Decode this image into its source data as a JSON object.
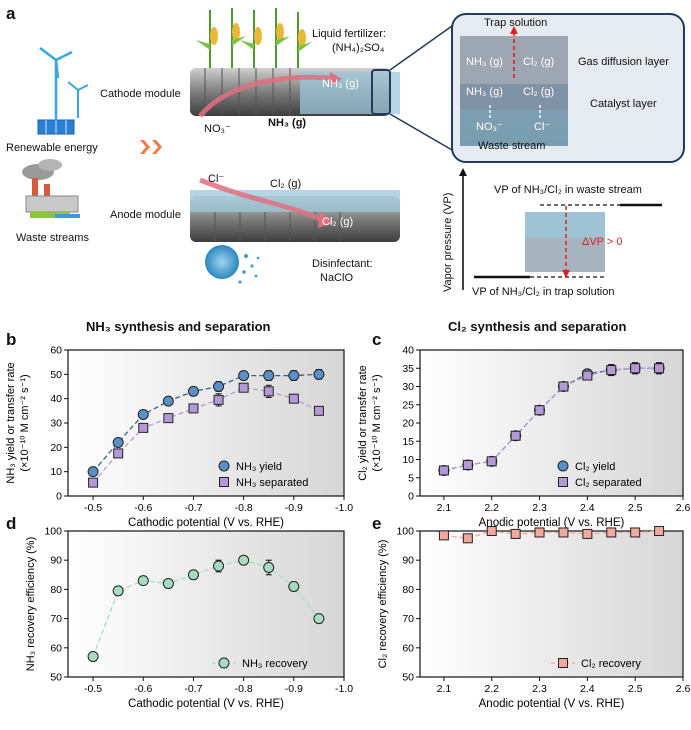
{
  "panel_a": {
    "letter": "a",
    "renewable_energy": "Renewable energy",
    "waste_streams": "Waste streams",
    "cathode_module": "Cathode module",
    "anode_module": "Anode module",
    "no3": "NO₃⁻",
    "nh3_gas_arrow": "NH₃ (g)",
    "nh3_gas_out": "NH₃ (g)",
    "cl_minus": "Cl⁻",
    "cl2_gas_arrow": "Cl₂ (g)",
    "cl2_gas_out": "Cl₂ (g)",
    "liquid_fertilizer": "Liquid fertilizer:",
    "fertilizer_formula": "(NH₄)₂SO₄",
    "disinfectant": "Disinfectant:",
    "disinfectant_formula": "NaClO",
    "inset": {
      "trap_solution": "Trap solution",
      "gas_diffusion_layer": "Gas diffusion layer",
      "catalyst_layer": "Catalyst layer",
      "waste_stream": "Waste stream",
      "nh3_g_top": "NH₃ (g)",
      "cl2_g_top": "Cl₂ (g)",
      "nh3_g_mid": "NH₃ (g)",
      "cl2_g_mid": "Cl₂ (g)",
      "no3_bottom": "NO₃⁻",
      "cl_bottom": "Cl⁻"
    },
    "vp_diagram": {
      "ylabel": "Vapor pressure (VP)",
      "top_line": "VP of NH₃/Cl₂ in waste stream",
      "bottom_line": "VP of NH₃/Cl₂ in trap solution",
      "delta": "ΔVP > 0"
    }
  },
  "colors": {
    "nh3_yield": "#5b8fc7",
    "nh3_separated": "#b39ad6",
    "nh3_recovery": "#a7dcc3",
    "cl2_yield": "#5b8fc7",
    "cl2_separated": "#b39ad6",
    "cl2_recovery": "#f0a99c",
    "accent_red": "#e02020"
  },
  "chart_data": [
    {
      "panel": "b",
      "type": "scatter",
      "title": "NH₃ synthesis and separation",
      "xlabel": "Cathodic potential (V vs. RHE)",
      "ylabel": "NH₃ yield or transfer rate",
      "ylabel_unit": "(×10⁻¹⁰ M cm⁻² s⁻¹)",
      "xlim": [
        -0.45,
        -1.0
      ],
      "ylim": [
        0,
        60
      ],
      "xticks": [
        -0.5,
        -0.6,
        -0.7,
        -0.8,
        -0.9,
        -1.0
      ],
      "xtick_labels": [
        "-0.5",
        "-0.6",
        "-0.7",
        "-0.8",
        "-0.9",
        "-1.0"
      ],
      "yticks": [
        0,
        10,
        20,
        30,
        40,
        50,
        60
      ],
      "ytick_labels": [
        "0",
        "10",
        "20",
        "30",
        "40",
        "50",
        "60"
      ],
      "legend_position": "bottom-right",
      "x": [
        -0.5,
        -0.55,
        -0.6,
        -0.65,
        -0.7,
        -0.75,
        -0.8,
        -0.85,
        -0.9,
        -0.95
      ],
      "series": [
        {
          "name": "NH₃ yield",
          "marker": "circle",
          "values": [
            10,
            22,
            33.5,
            39,
            43,
            45,
            49.5,
            49.5,
            49.5,
            50
          ],
          "errors": [
            1.5,
            1.5,
            1.5,
            1.5,
            1.5,
            2,
            1.5,
            2,
            2,
            2
          ]
        },
        {
          "name": "NH₃ separated",
          "marker": "square",
          "values": [
            5.5,
            17.5,
            28,
            32,
            36,
            39.5,
            44.5,
            43,
            40,
            35
          ],
          "errors": [
            1,
            1,
            1.5,
            1.5,
            1.5,
            2.5,
            1.5,
            2.5,
            1.5,
            1.5
          ]
        }
      ]
    },
    {
      "panel": "c",
      "type": "scatter",
      "title": "Cl₂ synthesis and separation",
      "xlabel": "Anodic potential (V vs. RHE)",
      "ylabel": "Cl₂ yield or transfer rate",
      "ylabel_unit": "(×10⁻¹⁰ M cm⁻² s⁻¹)",
      "xlim": [
        2.05,
        2.6
      ],
      "ylim": [
        0,
        40
      ],
      "xticks": [
        2.1,
        2.2,
        2.3,
        2.4,
        2.5,
        2.6
      ],
      "xtick_labels": [
        "2.1",
        "2.2",
        "2.3",
        "2.4",
        "2.5",
        "2.6"
      ],
      "yticks": [
        0,
        5,
        10,
        15,
        20,
        25,
        30,
        35,
        40
      ],
      "ytick_labels": [
        "0",
        "5",
        "10",
        "15",
        "20",
        "25",
        "30",
        "35",
        "40"
      ],
      "legend_position": "bottom-right",
      "x": [
        2.1,
        2.15,
        2.2,
        2.25,
        2.3,
        2.35,
        2.4,
        2.45,
        2.5,
        2.55
      ],
      "series": [
        {
          "name": "Cl₂ yield",
          "marker": "circle",
          "values": [
            7,
            8.5,
            9.5,
            16.5,
            23.5,
            30,
            33.5,
            34.5,
            35,
            35
          ],
          "errors": [
            0.8,
            0.8,
            0.8,
            0.8,
            0.8,
            1.2,
            1,
            1.5,
            1.5,
            1.5
          ]
        },
        {
          "name": "Cl₂ separated",
          "marker": "square",
          "values": [
            7,
            8.5,
            9.5,
            16.5,
            23.5,
            30,
            33,
            34.5,
            35,
            35
          ],
          "errors": [
            0.8,
            0.8,
            0.8,
            0.8,
            0.8,
            1.2,
            1,
            1.5,
            1.5,
            1.5
          ]
        }
      ]
    },
    {
      "panel": "d",
      "type": "scatter",
      "xlabel": "Cathodic potential (V vs. RHE)",
      "ylabel": "NH₃ recovery efficiency (%)",
      "xlim": [
        -0.45,
        -1.0
      ],
      "ylim": [
        50,
        100
      ],
      "xticks": [
        -0.5,
        -0.6,
        -0.7,
        -0.8,
        -0.9,
        -1.0
      ],
      "xtick_labels": [
        "-0.5",
        "-0.6",
        "-0.7",
        "-0.8",
        "-0.9",
        "-1.0"
      ],
      "yticks": [
        50,
        60,
        70,
        80,
        90,
        100
      ],
      "ytick_labels": [
        "50",
        "60",
        "70",
        "80",
        "90",
        "100"
      ],
      "legend_position": "bottom-right",
      "x": [
        -0.5,
        -0.55,
        -0.6,
        -0.65,
        -0.7,
        -0.75,
        -0.8,
        -0.85,
        -0.9,
        -0.95
      ],
      "series": [
        {
          "name": "NH₃ recovery",
          "marker": "circle",
          "values": [
            57,
            79.5,
            83,
            82,
            85,
            88,
            90,
            87.5,
            81,
            70
          ],
          "errors": [
            1,
            1.5,
            1,
            1,
            1.5,
            2,
            1,
            2.5,
            1.5,
            1.5
          ]
        }
      ]
    },
    {
      "panel": "e",
      "type": "scatter",
      "xlabel": "Anodic potential (V vs. RHE)",
      "ylabel": "Cl₂ recovery efficiency (%)",
      "xlim": [
        2.05,
        2.6
      ],
      "ylim": [
        50,
        100
      ],
      "xticks": [
        2.1,
        2.2,
        2.3,
        2.4,
        2.5,
        2.6
      ],
      "xtick_labels": [
        "2.1",
        "2.2",
        "2.3",
        "2.4",
        "2.5",
        "2.6"
      ],
      "yticks": [
        50,
        60,
        70,
        80,
        90,
        100
      ],
      "ytick_labels": [
        "50",
        "60",
        "70",
        "80",
        "90",
        "100"
      ],
      "legend_position": "bottom-right",
      "x": [
        2.1,
        2.15,
        2.2,
        2.25,
        2.3,
        2.35,
        2.4,
        2.45,
        2.5,
        2.55
      ],
      "series": [
        {
          "name": "Cl₂ recovery",
          "marker": "square",
          "values": [
            98.5,
            97.5,
            100,
            99,
            99.5,
            99.5,
            99,
            99.5,
            99.5,
            100
          ],
          "errors": [
            1,
            1,
            0.8,
            1,
            0.8,
            0.8,
            1,
            0.8,
            0.8,
            0.8
          ]
        }
      ]
    }
  ],
  "panel_letters": {
    "b": "b",
    "c": "c",
    "d": "d",
    "e": "e"
  }
}
